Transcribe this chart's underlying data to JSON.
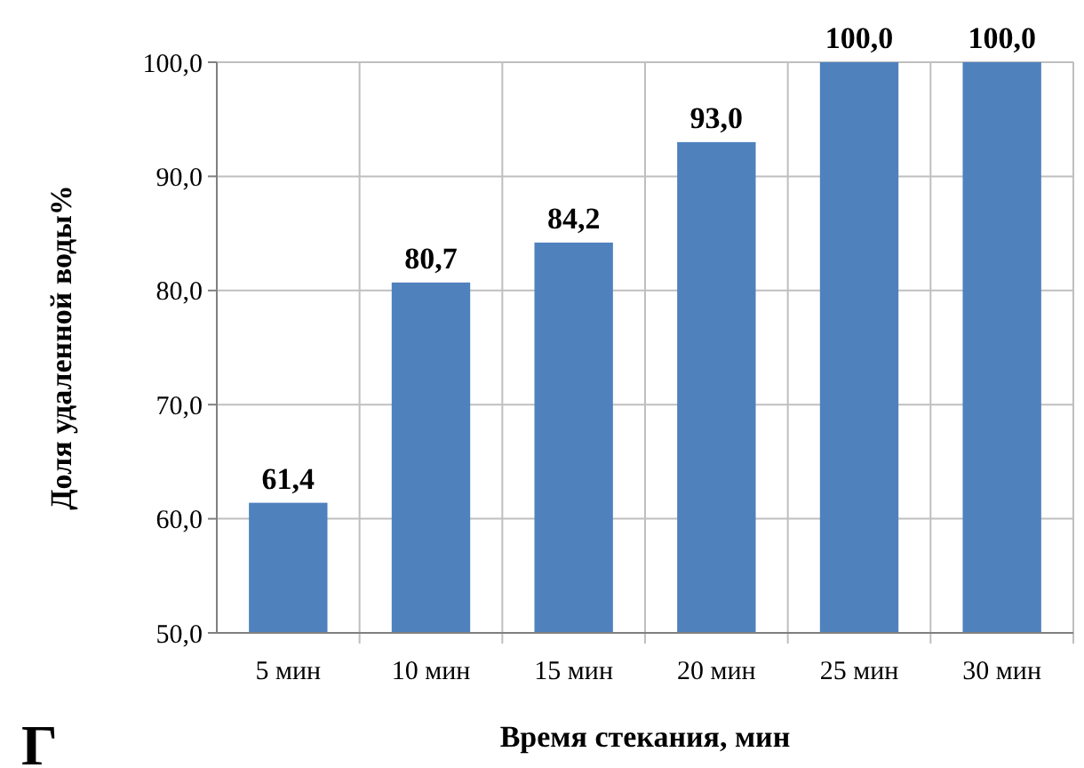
{
  "chart_data": {
    "type": "bar",
    "ylabel": "Доля удаленной воды%",
    "xlabel": "Время стекания, мин",
    "categories": [
      "5 мин",
      "10 мин",
      "15 мин",
      "20 мин",
      "25 мин",
      "30 мин"
    ],
    "values": [
      61.4,
      80.7,
      84.2,
      93.0,
      100.0,
      100.0
    ],
    "value_labels": [
      "61,4",
      "80,7",
      "84,2",
      "93,0",
      "100,0",
      "100,0"
    ],
    "color": "#4f81bd",
    "ylim": [
      50,
      100
    ],
    "yticks": [
      {
        "value": 50,
        "label": "50,0"
      },
      {
        "value": 60,
        "label": "60,0"
      },
      {
        "value": 70,
        "label": "70,0"
      },
      {
        "value": 80,
        "label": "80,0"
      },
      {
        "value": 90,
        "label": "90,0"
      },
      {
        "value": 100,
        "label": "100,0"
      }
    ],
    "grid": true,
    "annotations": [
      "Г"
    ]
  }
}
